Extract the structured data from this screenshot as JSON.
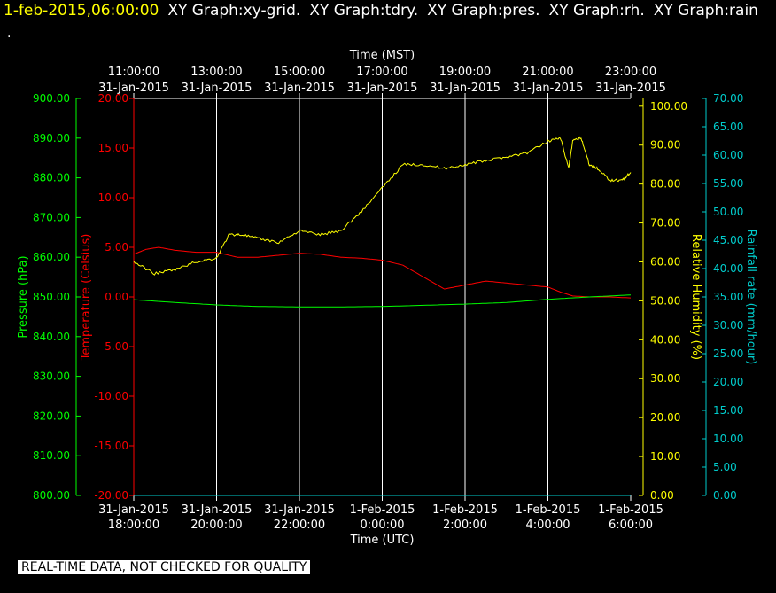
{
  "header": {
    "timestamp": "1-feb-2015,06:00:00",
    "graphs": [
      "XY Graph:xy-grid.",
      "XY Graph:tdry.",
      "XY Graph:pres.",
      "XY Graph:rh.",
      "XY Graph:rain"
    ],
    "sub": "."
  },
  "disclaimer": "REAL-TIME DATA, NOT CHECKED FOR QUALITY",
  "chart_data": {
    "type": "line",
    "x_top": {
      "label": "Time (MST)",
      "ticks": [
        {
          "time": "11:00:00",
          "date": "31-Jan-2015"
        },
        {
          "time": "13:00:00",
          "date": "31-Jan-2015"
        },
        {
          "time": "15:00:00",
          "date": "31-Jan-2015"
        },
        {
          "time": "17:00:00",
          "date": "31-Jan-2015"
        },
        {
          "time": "19:00:00",
          "date": "31-Jan-2015"
        },
        {
          "time": "21:00:00",
          "date": "31-Jan-2015"
        },
        {
          "time": "23:00:00",
          "date": "31-Jan-2015"
        }
      ]
    },
    "x_bottom": {
      "label": "Time (UTC)",
      "ticks": [
        {
          "date": "31-Jan-2015",
          "time": "18:00:00"
        },
        {
          "date": "31-Jan-2015",
          "time": "20:00:00"
        },
        {
          "date": "31-Jan-2015",
          "time": "22:00:00"
        },
        {
          "date": "1-Feb-2015",
          "time": "0:00:00"
        },
        {
          "date": "1-Feb-2015",
          "time": "2:00:00"
        },
        {
          "date": "1-Feb-2015",
          "time": "4:00:00"
        },
        {
          "date": "1-Feb-2015",
          "time": "6:00:00"
        }
      ]
    },
    "x_hours_utc_range": [
      0,
      12
    ],
    "axes": {
      "pressure": {
        "label": "Pressure (hPa)",
        "color": "#00ff00",
        "ylim": [
          800,
          900
        ],
        "ticks": [
          "800.00",
          "810.00",
          "820.00",
          "830.00",
          "840.00",
          "850.00",
          "860.00",
          "870.00",
          "880.00",
          "890.00",
          "900.00"
        ]
      },
      "temperature": {
        "label": "Temperature (Celsius)",
        "color": "#ff0000",
        "ylim": [
          -20,
          20
        ],
        "ticks": [
          "-20.00",
          "-15.00",
          "-10.00",
          "-5.00",
          "0.00",
          "5.00",
          "10.00",
          "15.00",
          "20.00"
        ]
      },
      "humidity": {
        "label": "Relative Humidity (%)",
        "color": "#ffff00",
        "ylim": [
          0,
          102
        ],
        "ticks": [
          "0.00",
          "10.00",
          "20.00",
          "30.00",
          "40.00",
          "50.00",
          "60.00",
          "70.00",
          "80.00",
          "90.00",
          "100.00"
        ]
      },
      "rain": {
        "label": "Rainfall rate (mm/hour)",
        "color": "#00cccc",
        "ylim": [
          0,
          70
        ],
        "ticks": [
          "0.00",
          "5.00",
          "10.00",
          "15.00",
          "20.00",
          "25.00",
          "30.00",
          "35.00",
          "40.00",
          "45.00",
          "50.00",
          "55.00",
          "60.00",
          "65.00",
          "70.00"
        ]
      }
    },
    "series": [
      {
        "name": "tdry",
        "axis": "temperature",
        "color": "#ff0000",
        "x": [
          0,
          0.3,
          0.6,
          1.0,
          1.5,
          2.0,
          2.5,
          3.0,
          3.5,
          4.0,
          4.5,
          5.0,
          5.5,
          6.0,
          6.5,
          7.0,
          7.5,
          8.0,
          8.5,
          9.0,
          9.5,
          10.0,
          10.3,
          10.6,
          11.0,
          11.5,
          12.0
        ],
        "y": [
          4.3,
          4.8,
          5.0,
          4.7,
          4.5,
          4.5,
          4.0,
          4.0,
          4.2,
          4.4,
          4.3,
          4.0,
          3.9,
          3.7,
          3.2,
          2.0,
          0.8,
          1.2,
          1.6,
          1.4,
          1.2,
          1.0,
          0.5,
          0.1,
          0.0,
          0.0,
          -0.1
        ]
      },
      {
        "name": "pres",
        "axis": "pressure",
        "color": "#00ff00",
        "x": [
          0,
          1,
          2,
          3,
          4,
          5,
          6,
          7,
          8,
          9,
          10,
          11,
          12
        ],
        "y": [
          849.3,
          848.6,
          848.0,
          847.6,
          847.5,
          847.5,
          847.6,
          847.9,
          848.2,
          848.6,
          849.4,
          850.0,
          850.5
        ]
      },
      {
        "name": "rh",
        "axis": "humidity",
        "color": "#ffff00",
        "x": [
          0,
          0.5,
          1.0,
          1.5,
          2.0,
          2.3,
          2.6,
          3.0,
          3.5,
          4.0,
          4.5,
          5.0,
          5.5,
          6.0,
          6.5,
          7.0,
          7.5,
          8.0,
          8.5,
          9.0,
          9.5,
          10.0,
          10.3,
          10.5,
          10.6,
          10.8,
          11.0,
          11.2,
          11.5,
          11.8,
          12.0
        ],
        "y": [
          60,
          57,
          58,
          60,
          61,
          67,
          67,
          66,
          65,
          68,
          67,
          68,
          73,
          79,
          85,
          85,
          84,
          85,
          86,
          87,
          88,
          91,
          92,
          84,
          91,
          92,
          85,
          84,
          81,
          81,
          83
        ]
      },
      {
        "name": "rain",
        "axis": "rain",
        "color": "#00cccc",
        "x": [
          0,
          12
        ],
        "y": [
          0,
          0
        ]
      }
    ],
    "grid": true
  }
}
